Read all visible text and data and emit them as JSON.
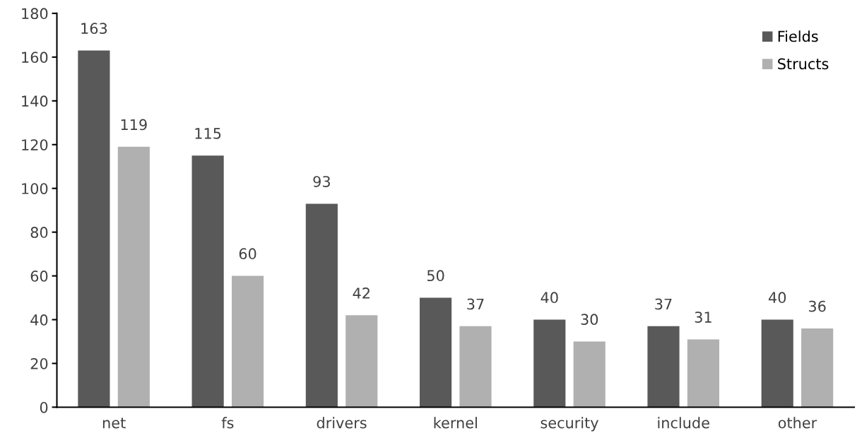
{
  "chart_data": {
    "type": "bar",
    "categories": [
      "net",
      "fs",
      "drivers",
      "kernel",
      "security",
      "include",
      "other"
    ],
    "series": [
      {
        "name": "Fields",
        "color": "#595959",
        "values": [
          163,
          115,
          93,
          50,
          40,
          37,
          40
        ]
      },
      {
        "name": "Structs",
        "color": "#b0b0b0",
        "values": [
          119,
          60,
          42,
          37,
          30,
          31,
          36
        ]
      }
    ],
    "ylim": [
      0,
      180
    ],
    "yticks": [
      0,
      20,
      40,
      60,
      80,
      100,
      120,
      140,
      160,
      180
    ],
    "data_labels": true,
    "grid": false,
    "legend": "top right"
  }
}
